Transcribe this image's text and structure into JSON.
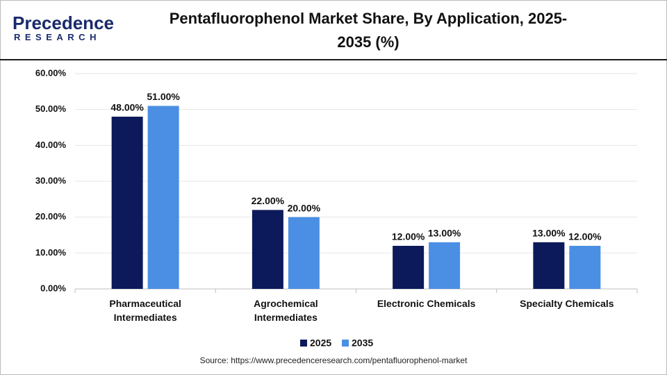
{
  "logo": {
    "name": "Precedence",
    "sub": "RESEARCH"
  },
  "chart_data": {
    "type": "bar",
    "title": "Pentafluorophenol Market Share, By Application, 2025-2035 (%)",
    "categories": [
      "Pharmaceutical Intermediates",
      "Agrochemical Intermediates",
      "Electronic Chemicals",
      "Specialty Chemicals"
    ],
    "series": [
      {
        "name": "2025",
        "color": "#0c1a5b",
        "values": [
          48,
          22,
          12,
          13
        ],
        "value_labels": [
          "48.00%",
          "22.00%",
          "12.00%",
          "13.00%"
        ]
      },
      {
        "name": "2035",
        "color": "#4a8fe4",
        "values": [
          51,
          20,
          13,
          12
        ],
        "value_labels": [
          "51.00%",
          "20.00%",
          "13.00%",
          "12.00%"
        ]
      }
    ],
    "ylim": [
      0,
      60
    ],
    "yticks": [
      {
        "value": 0,
        "label": "0.00%"
      },
      {
        "value": 10,
        "label": "10.00%"
      },
      {
        "value": 20,
        "label": "20.00%"
      },
      {
        "value": 30,
        "label": "30.00%"
      },
      {
        "value": 40,
        "label": "40.00%"
      },
      {
        "value": 50,
        "label": "50.00%"
      },
      {
        "value": 60,
        "label": "60.00%"
      }
    ],
    "grid": true,
    "legend": "bottom",
    "source": "Source: https://www.precedenceresearch.com/pentafluorophenol-market"
  }
}
